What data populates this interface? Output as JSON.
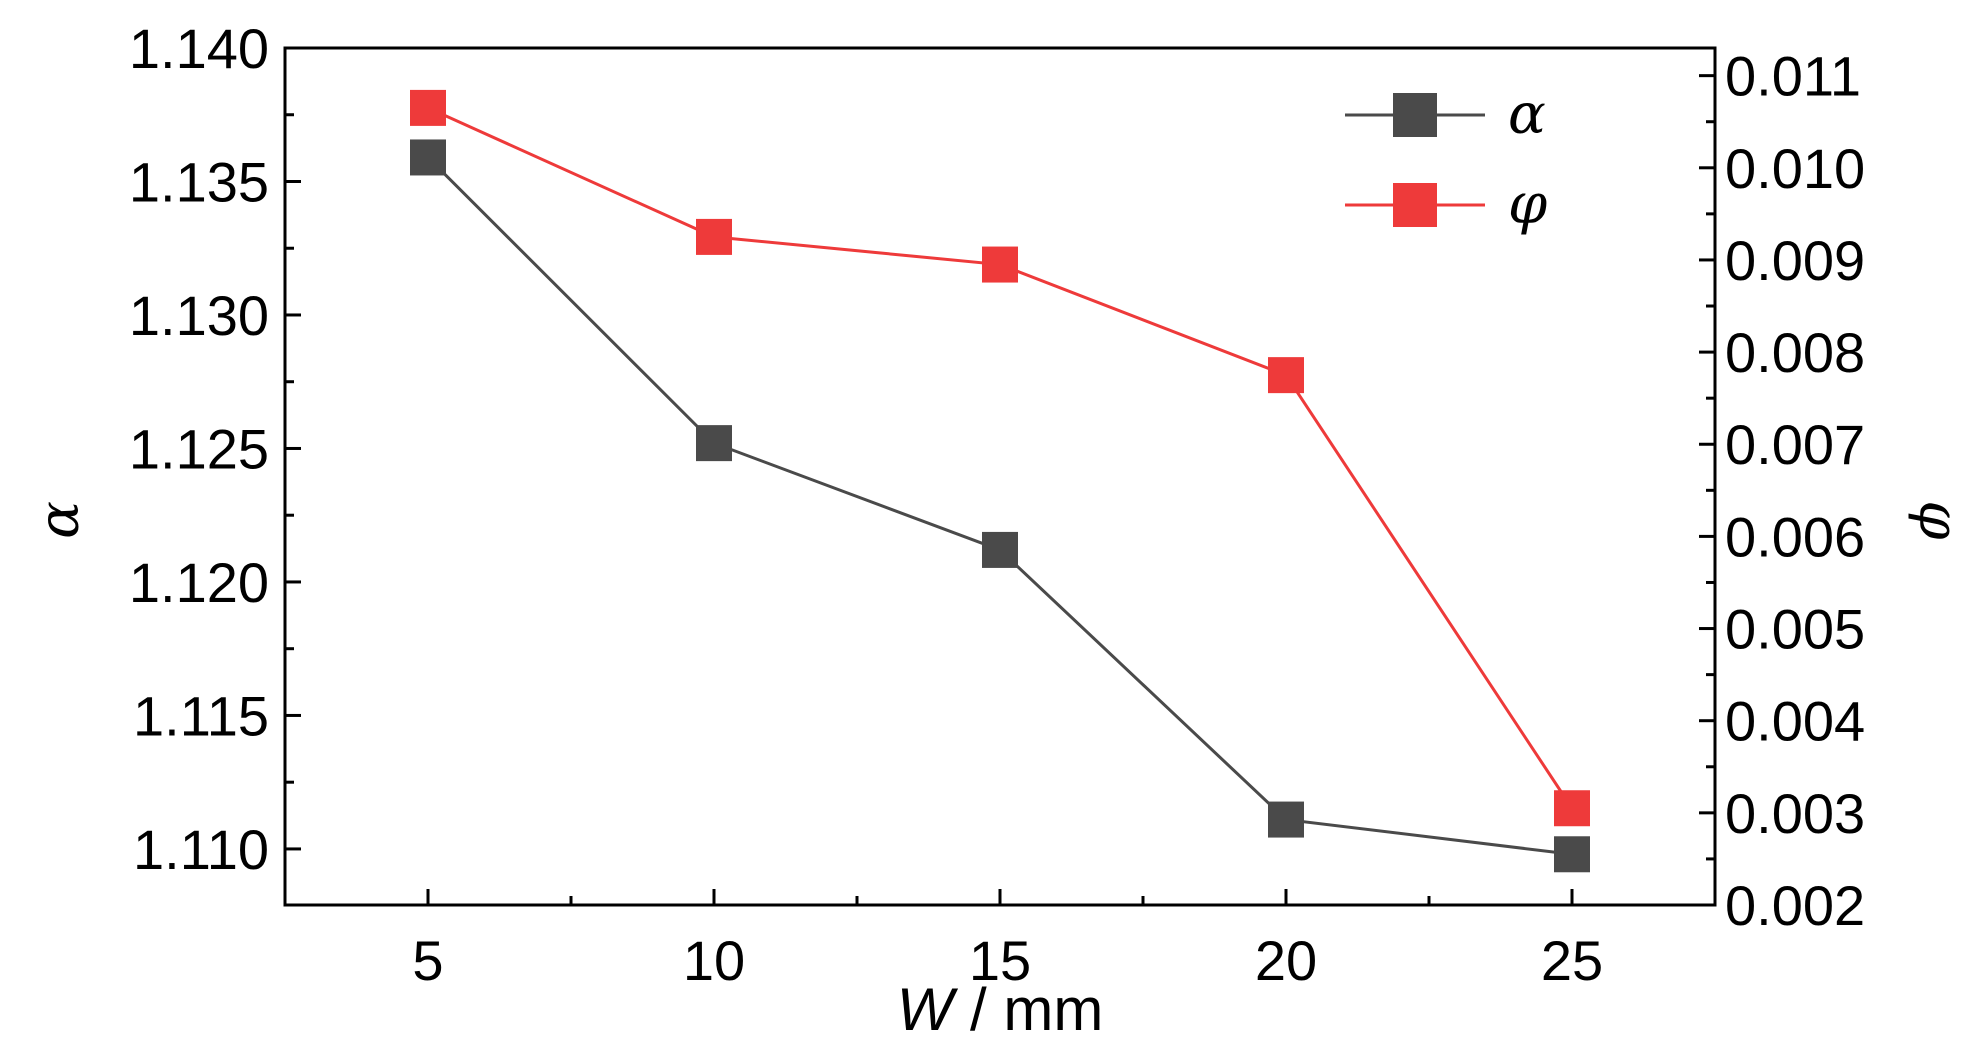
{
  "chart_data": {
    "type": "line",
    "x": [
      5,
      10,
      15,
      20,
      25
    ],
    "x_tick_labels": [
      "5",
      "10",
      "15",
      "20",
      "25"
    ],
    "xlabel_italic": "W",
    "xlabel_rest": " / mm",
    "xlim": [
      2.5,
      27.5
    ],
    "y_left": {
      "label": "α",
      "lim": [
        1.1079,
        1.14
      ],
      "ticks": [
        1.11,
        1.115,
        1.12,
        1.125,
        1.13,
        1.135,
        1.14
      ],
      "tick_labels": [
        "1.110",
        "1.115",
        "1.120",
        "1.125",
        "1.130",
        "1.135",
        "1.140"
      ]
    },
    "y_right": {
      "label": "φ",
      "lim": [
        0.002,
        0.0113
      ],
      "ticks": [
        0.002,
        0.003,
        0.004,
        0.005,
        0.006,
        0.007,
        0.008,
        0.009,
        0.01,
        0.011
      ],
      "tick_labels": [
        "0.002",
        "0.003",
        "0.004",
        "0.005",
        "0.006",
        "0.007",
        "0.008",
        "0.009",
        "0.010",
        "0.011"
      ]
    },
    "series": [
      {
        "name": "α",
        "axis": "left",
        "color": "#4a4a4a",
        "values": [
          1.1359,
          1.1252,
          1.1212,
          1.1111,
          1.1098
        ]
      },
      {
        "name": "φ",
        "axis": "right",
        "color": "#ee3a3a",
        "values": [
          0.01065,
          0.00925,
          0.00895,
          0.00775,
          0.00305
        ]
      }
    ],
    "grid": false,
    "legend_position": "top-right"
  }
}
